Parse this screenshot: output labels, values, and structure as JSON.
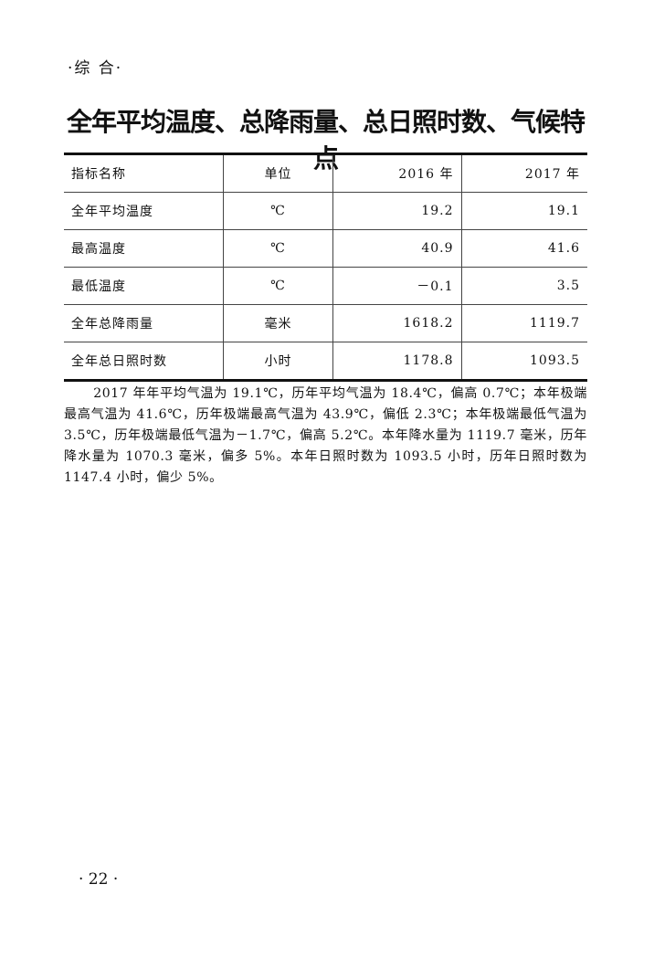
{
  "header": {
    "section": "·综 合·",
    "title": "全年平均温度、总降雨量、总日照时数、气候特点"
  },
  "table": {
    "columns": [
      "指标名称",
      "单位",
      "2016 年",
      "2017 年"
    ],
    "rows": [
      [
        "全年平均温度",
        "℃",
        "19.2",
        "19.1"
      ],
      [
        "最高温度",
        "℃",
        "40.9",
        "41.6"
      ],
      [
        "最低温度",
        "℃",
        "－0.1",
        "3.5"
      ],
      [
        "全年总降雨量",
        "毫米",
        "1618.2",
        "1119.7"
      ],
      [
        "全年总日照时数",
        "小时",
        "1178.8",
        "1093.5"
      ]
    ]
  },
  "paragraph": "2017 年年平均气温为 19.1℃，历年平均气温为 18.4℃，偏高 0.7℃；本年极端最高气温为 41.6℃，历年极端最高气温为 43.9℃，偏低 2.3℃；本年极端最低气温为 3.5℃，历年极端最低气温为－1.7℃，偏高 5.2℃。本年降水量为 1119.7 毫米，历年降水量为 1070.3 毫米，偏多 5%。本年日照时数为 1093.5 小时，历年日照时数为 1147.4 小时，偏少 5%。",
  "footer": {
    "page_number": "· 22 ·"
  }
}
